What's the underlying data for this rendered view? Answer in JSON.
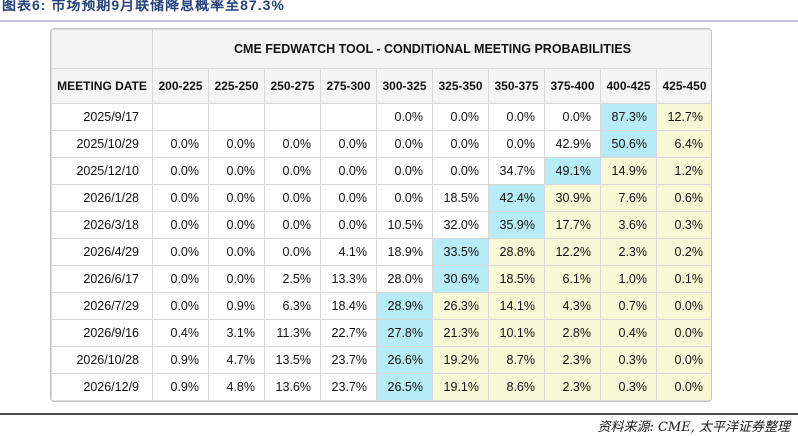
{
  "page": {
    "title": "图表6: 市场预期9月联储降息概率至87.3%",
    "source_note": "资料来源: CME, 太平洋证券整理"
  },
  "colors": {
    "title_text": "#26437c",
    "top_divider": "#c6c6da",
    "bottom_divider": "#4a4a4a",
    "header_bg": "#f4f4f4",
    "cell_border": "#d9d9d9",
    "highlight_blue": "#b7ecf7",
    "highlight_yellow": "#f8f8d6"
  },
  "chart_data": {
    "type": "table",
    "title": "CME FEDWATCH TOOL - CONDITIONAL MEETING PROBABILITIES",
    "date_header": "MEETING DATE",
    "rate_headers": [
      "200-225",
      "225-250",
      "250-275",
      "275-300",
      "300-325",
      "325-350",
      "350-375",
      "375-400",
      "400-425",
      "425-450"
    ],
    "rows": [
      {
        "date": "2025/9/17",
        "values": [
          "",
          "",
          "",
          "",
          "0.0%",
          "0.0%",
          "0.0%",
          "0.0%",
          "87.3%",
          "12.7%"
        ],
        "bg": [
          "",
          "",
          "",
          "",
          "",
          "",
          "",
          "",
          "b",
          "y"
        ]
      },
      {
        "date": "2025/10/29",
        "values": [
          "0.0%",
          "0.0%",
          "0.0%",
          "0.0%",
          "0.0%",
          "0.0%",
          "0.0%",
          "42.9%",
          "50.6%",
          "6.4%"
        ],
        "bg": [
          "",
          "",
          "",
          "",
          "",
          "",
          "",
          "",
          "b",
          "y"
        ]
      },
      {
        "date": "2025/12/10",
        "values": [
          "0.0%",
          "0.0%",
          "0.0%",
          "0.0%",
          "0.0%",
          "0.0%",
          "34.7%",
          "49.1%",
          "14.9%",
          "1.2%"
        ],
        "bg": [
          "",
          "",
          "",
          "",
          "",
          "",
          "",
          "b",
          "y",
          "y"
        ]
      },
      {
        "date": "2026/1/28",
        "values": [
          "0.0%",
          "0.0%",
          "0.0%",
          "0.0%",
          "0.0%",
          "18.5%",
          "42.4%",
          "30.9%",
          "7.6%",
          "0.6%"
        ],
        "bg": [
          "",
          "",
          "",
          "",
          "",
          "",
          "b",
          "y",
          "y",
          "y"
        ]
      },
      {
        "date": "2026/3/18",
        "values": [
          "0.0%",
          "0.0%",
          "0.0%",
          "0.0%",
          "10.5%",
          "32.0%",
          "35.9%",
          "17.7%",
          "3.6%",
          "0.3%"
        ],
        "bg": [
          "",
          "",
          "",
          "",
          "",
          "",
          "b",
          "y",
          "y",
          "y"
        ]
      },
      {
        "date": "2026/4/29",
        "values": [
          "0.0%",
          "0.0%",
          "0.0%",
          "4.1%",
          "18.9%",
          "33.5%",
          "28.8%",
          "12.2%",
          "2.3%",
          "0.2%"
        ],
        "bg": [
          "",
          "",
          "",
          "",
          "",
          "b",
          "y",
          "y",
          "y",
          "y"
        ]
      },
      {
        "date": "2026/6/17",
        "values": [
          "0.0%",
          "0.0%",
          "2.5%",
          "13.3%",
          "28.0%",
          "30.6%",
          "18.5%",
          "6.1%",
          "1.0%",
          "0.1%"
        ],
        "bg": [
          "",
          "",
          "",
          "",
          "",
          "b",
          "y",
          "y",
          "y",
          "y"
        ]
      },
      {
        "date": "2026/7/29",
        "values": [
          "0.0%",
          "0.9%",
          "6.3%",
          "18.4%",
          "28.9%",
          "26.3%",
          "14.1%",
          "4.3%",
          "0.7%",
          "0.0%"
        ],
        "bg": [
          "",
          "",
          "",
          "",
          "b",
          "y",
          "y",
          "y",
          "y",
          "y"
        ]
      },
      {
        "date": "2026/9/16",
        "values": [
          "0.4%",
          "3.1%",
          "11.3%",
          "22.7%",
          "27.8%",
          "21.3%",
          "10.1%",
          "2.8%",
          "0.4%",
          "0.0%"
        ],
        "bg": [
          "",
          "",
          "",
          "",
          "b",
          "y",
          "y",
          "y",
          "y",
          "y"
        ]
      },
      {
        "date": "2026/10/28",
        "values": [
          "0.9%",
          "4.7%",
          "13.5%",
          "23.7%",
          "26.6%",
          "19.2%",
          "8.7%",
          "2.3%",
          "0.3%",
          "0.0%"
        ],
        "bg": [
          "",
          "",
          "",
          "",
          "b",
          "y",
          "y",
          "y",
          "y",
          "y"
        ]
      },
      {
        "date": "2026/12/9",
        "values": [
          "0.9%",
          "4.8%",
          "13.6%",
          "23.7%",
          "26.5%",
          "19.1%",
          "8.6%",
          "2.3%",
          "0.3%",
          "0.0%"
        ],
        "bg": [
          "",
          "",
          "",
          "",
          "b",
          "y",
          "y",
          "y",
          "y",
          "y"
        ]
      }
    ]
  }
}
